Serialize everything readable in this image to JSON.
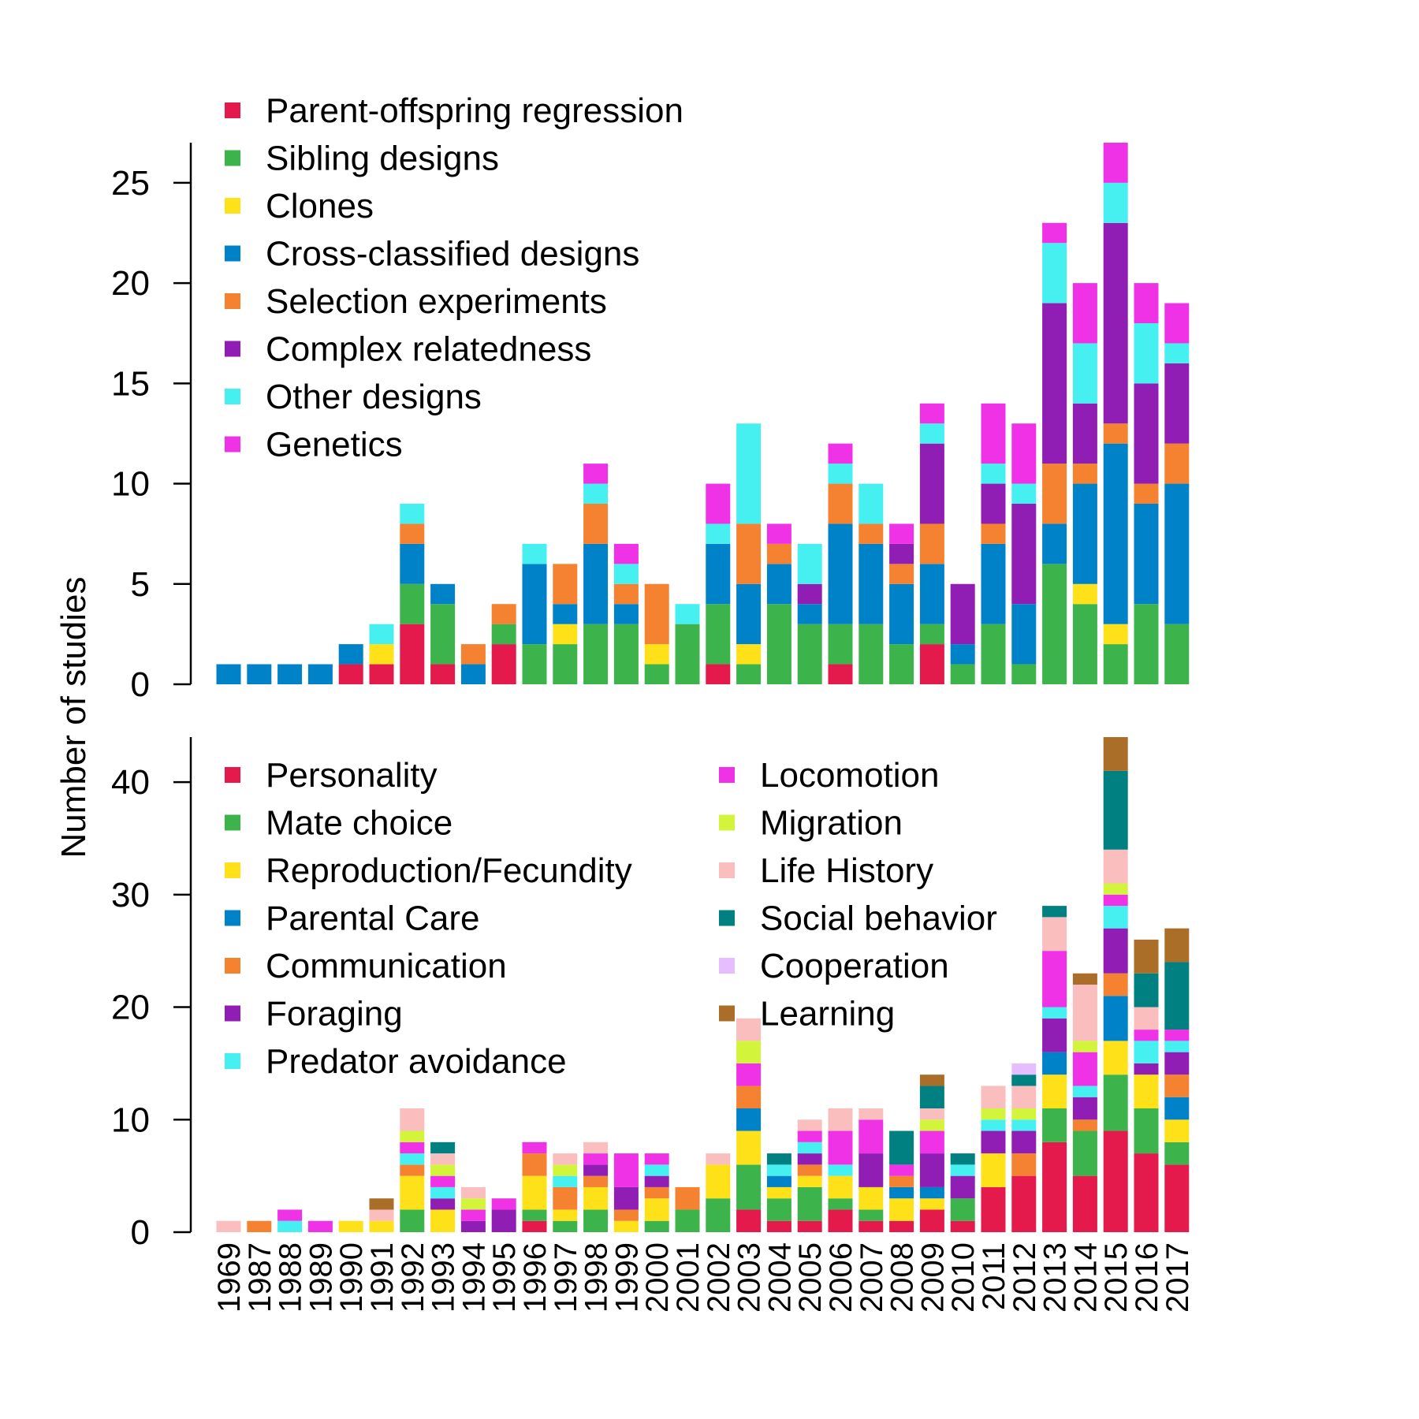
{
  "chart_data": [
    {
      "type": "bar",
      "stacked": true,
      "ylabel": "Number of studies",
      "ylim": [
        0,
        27
      ],
      "yticks": [
        0,
        5,
        10,
        15,
        20,
        25
      ],
      "legend_position": "top-left",
      "categories": [
        "1969",
        "1987",
        "1988",
        "1989",
        "1990",
        "1991",
        "1992",
        "1993",
        "1994",
        "1995",
        "1996",
        "1997",
        "1998",
        "1999",
        "2000",
        "2001",
        "2002",
        "2003",
        "2004",
        "2005",
        "2006",
        "2007",
        "2008",
        "2009",
        "2010",
        "2011",
        "2012",
        "2013",
        "2014",
        "2015",
        "2016",
        "2017"
      ],
      "series": [
        {
          "name": "Parent-offspring regression",
          "color": "#E31A4B",
          "values": [
            0,
            0,
            0,
            0,
            1,
            1,
            3,
            1,
            0,
            2,
            0,
            0,
            0,
            0,
            0,
            0,
            1,
            0,
            0,
            0,
            1,
            0,
            0,
            2,
            0,
            0,
            0,
            0,
            0,
            0,
            0,
            0
          ]
        },
        {
          "name": "Sibling designs",
          "color": "#3CB44B",
          "values": [
            0,
            0,
            0,
            0,
            0,
            0,
            2,
            3,
            0,
            1,
            2,
            2,
            3,
            3,
            1,
            3,
            3,
            1,
            4,
            3,
            2,
            3,
            2,
            1,
            1,
            3,
            1,
            6,
            4,
            2,
            4,
            3
          ]
        },
        {
          "name": "Clones",
          "color": "#FFE119",
          "values": [
            0,
            0,
            0,
            0,
            0,
            1,
            0,
            0,
            0,
            0,
            0,
            1,
            0,
            0,
            1,
            0,
            0,
            1,
            0,
            0,
            0,
            0,
            0,
            0,
            0,
            0,
            0,
            0,
            1,
            1,
            0,
            0
          ]
        },
        {
          "name": "Cross-classified designs",
          "color": "#0082C8",
          "values": [
            1,
            1,
            1,
            1,
            1,
            0,
            2,
            1,
            1,
            0,
            4,
            1,
            4,
            1,
            0,
            0,
            3,
            3,
            2,
            1,
            5,
            4,
            3,
            3,
            1,
            4,
            3,
            2,
            5,
            9,
            5,
            7
          ]
        },
        {
          "name": "Selection experiments",
          "color": "#F58231",
          "values": [
            0,
            0,
            0,
            0,
            0,
            0,
            1,
            0,
            1,
            1,
            0,
            2,
            2,
            1,
            3,
            0,
            0,
            3,
            1,
            0,
            2,
            1,
            1,
            2,
            0,
            1,
            0,
            3,
            1,
            1,
            1,
            2
          ]
        },
        {
          "name": "Complex relatedness",
          "color": "#911EB4",
          "values": [
            0,
            0,
            0,
            0,
            0,
            0,
            0,
            0,
            0,
            0,
            0,
            0,
            0,
            0,
            0,
            0,
            0,
            0,
            0,
            1,
            0,
            0,
            1,
            4,
            3,
            2,
            5,
            8,
            3,
            10,
            5,
            4
          ]
        },
        {
          "name": "Other designs",
          "color": "#46F0F0",
          "values": [
            0,
            0,
            0,
            0,
            0,
            1,
            1,
            0,
            0,
            0,
            1,
            0,
            1,
            1,
            0,
            1,
            1,
            5,
            0,
            2,
            1,
            2,
            0,
            1,
            0,
            1,
            1,
            3,
            3,
            2,
            3,
            1
          ]
        },
        {
          "name": "Genetics",
          "color": "#F032E6",
          "values": [
            0,
            0,
            0,
            0,
            0,
            0,
            0,
            0,
            0,
            0,
            0,
            0,
            1,
            1,
            0,
            0,
            2,
            0,
            1,
            0,
            1,
            0,
            1,
            1,
            0,
            3,
            3,
            1,
            3,
            2,
            2,
            2
          ]
        }
      ]
    },
    {
      "type": "bar",
      "stacked": true,
      "xlabel": "",
      "ylabel": "Number of studies",
      "ylim": [
        0,
        44
      ],
      "yticks": [
        0,
        10,
        20,
        30,
        40
      ],
      "legend_position": "top-left",
      "categories": [
        "1969",
        "1987",
        "1988",
        "1989",
        "1990",
        "1991",
        "1992",
        "1993",
        "1994",
        "1995",
        "1996",
        "1997",
        "1998",
        "1999",
        "2000",
        "2001",
        "2002",
        "2003",
        "2004",
        "2005",
        "2006",
        "2007",
        "2008",
        "2009",
        "2010",
        "2011",
        "2012",
        "2013",
        "2014",
        "2015",
        "2016",
        "2017"
      ],
      "series": [
        {
          "name": "Personality",
          "color": "#E31A4B",
          "values": [
            0,
            0,
            0,
            0,
            0,
            0,
            0,
            0,
            0,
            0,
            1,
            0,
            0,
            0,
            0,
            0,
            0,
            2,
            1,
            1,
            2,
            1,
            1,
            2,
            1,
            4,
            5,
            8,
            5,
            9,
            7,
            6
          ]
        },
        {
          "name": "Mate choice",
          "color": "#3CB44B",
          "values": [
            0,
            0,
            0,
            0,
            0,
            0,
            2,
            0,
            0,
            0,
            1,
            1,
            2,
            0,
            1,
            2,
            3,
            4,
            2,
            3,
            1,
            1,
            0,
            0,
            2,
            0,
            0,
            3,
            4,
            5,
            4,
            2
          ]
        },
        {
          "name": "Reproduction/Fecundity",
          "color": "#FFE119",
          "values": [
            0,
            0,
            0,
            0,
            1,
            1,
            3,
            2,
            0,
            0,
            3,
            1,
            2,
            1,
            2,
            0,
            3,
            3,
            1,
            1,
            2,
            2,
            2,
            1,
            0,
            3,
            0,
            3,
            0,
            3,
            3,
            2
          ]
        },
        {
          "name": "Parental Care",
          "color": "#0082C8",
          "values": [
            0,
            0,
            0,
            0,
            0,
            0,
            0,
            0,
            0,
            0,
            0,
            0,
            0,
            0,
            0,
            0,
            0,
            2,
            1,
            0,
            0,
            0,
            1,
            1,
            0,
            0,
            0,
            2,
            0,
            4,
            0,
            2
          ]
        },
        {
          "name": "Communication",
          "color": "#F58231",
          "values": [
            0,
            1,
            0,
            0,
            0,
            0,
            1,
            0,
            0,
            0,
            2,
            2,
            1,
            1,
            1,
            2,
            0,
            2,
            0,
            1,
            0,
            0,
            1,
            0,
            0,
            0,
            2,
            0,
            1,
            2,
            0,
            2
          ]
        },
        {
          "name": "Foraging",
          "color": "#911EB4",
          "values": [
            0,
            0,
            0,
            0,
            0,
            0,
            0,
            1,
            1,
            2,
            0,
            0,
            1,
            2,
            1,
            0,
            0,
            0,
            0,
            1,
            0,
            3,
            0,
            3,
            2,
            2,
            2,
            3,
            2,
            4,
            1,
            2
          ]
        },
        {
          "name": "Predator avoidance",
          "color": "#46F0F0",
          "values": [
            0,
            0,
            1,
            0,
            0,
            0,
            1,
            1,
            0,
            0,
            0,
            1,
            0,
            0,
            1,
            0,
            0,
            0,
            1,
            1,
            1,
            0,
            0,
            0,
            1,
            1,
            1,
            1,
            1,
            2,
            2,
            1
          ]
        },
        {
          "name": "Locomotion",
          "color": "#F032E6",
          "values": [
            0,
            0,
            1,
            1,
            0,
            0,
            1,
            1,
            1,
            1,
            1,
            0,
            1,
            3,
            1,
            0,
            0,
            2,
            0,
            1,
            3,
            3,
            1,
            2,
            0,
            0,
            0,
            5,
            3,
            1,
            1,
            1
          ]
        },
        {
          "name": "Migration",
          "color": "#D2F53C",
          "values": [
            0,
            0,
            0,
            0,
            0,
            0,
            1,
            1,
            1,
            0,
            0,
            1,
            0,
            0,
            0,
            0,
            0,
            2,
            0,
            0,
            0,
            0,
            0,
            1,
            0,
            1,
            1,
            0,
            1,
            1,
            0,
            0
          ]
        },
        {
          "name": "Life History",
          "color": "#FABEBE",
          "values": [
            1,
            0,
            0,
            0,
            0,
            1,
            2,
            1,
            1,
            0,
            0,
            1,
            1,
            0,
            0,
            0,
            1,
            2,
            0,
            1,
            2,
            1,
            0,
            1,
            0,
            2,
            2,
            3,
            5,
            3,
            2,
            0
          ]
        },
        {
          "name": "Social behavior",
          "color": "#008080",
          "values": [
            0,
            0,
            0,
            0,
            0,
            0,
            0,
            1,
            0,
            0,
            0,
            0,
            0,
            0,
            0,
            0,
            0,
            0,
            1,
            0,
            0,
            0,
            3,
            2,
            1,
            0,
            1,
            1,
            0,
            7,
            3,
            6
          ]
        },
        {
          "name": "Cooperation",
          "color": "#E6BEFF",
          "values": [
            0,
            0,
            0,
            0,
            0,
            0,
            0,
            0,
            0,
            0,
            0,
            0,
            0,
            0,
            0,
            0,
            0,
            0,
            0,
            0,
            0,
            0,
            0,
            0,
            0,
            0,
            1,
            0,
            0,
            0,
            0,
            0
          ]
        },
        {
          "name": "Learning",
          "color": "#AA6E28",
          "values": [
            0,
            0,
            0,
            0,
            0,
            1,
            0,
            0,
            0,
            0,
            0,
            0,
            0,
            0,
            0,
            0,
            0,
            0,
            0,
            0,
            0,
            0,
            0,
            1,
            0,
            0,
            0,
            0,
            1,
            3,
            3,
            3
          ]
        }
      ]
    }
  ]
}
